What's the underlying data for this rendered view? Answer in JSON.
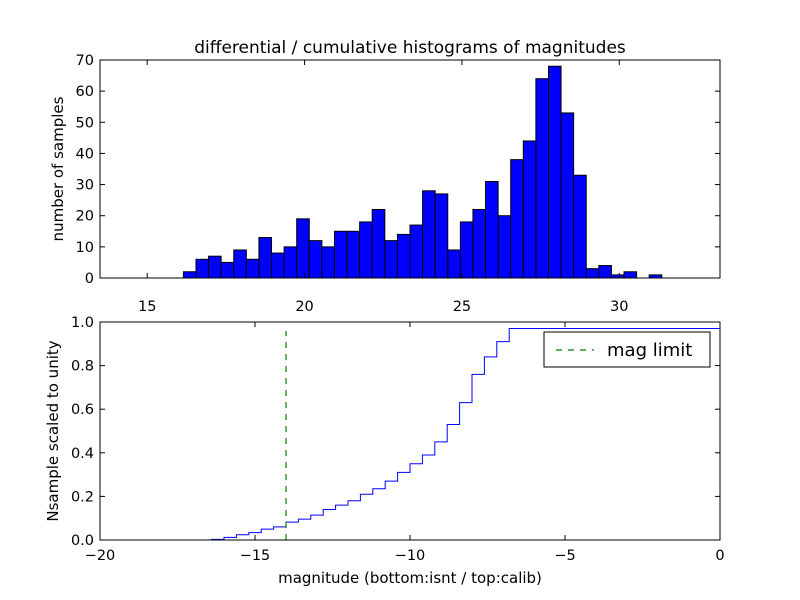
{
  "figure": {
    "title": "differential / cumulative histograms of magnitudes",
    "colors": {
      "bar": "#0000ff",
      "step": "#0000ff",
      "limit": "#008000",
      "edge": "#000000"
    }
  },
  "chart_data": [
    {
      "type": "bar",
      "title": "differential / cumulative histograms of magnitudes",
      "xlabel": "",
      "ylabel": "number of samples",
      "xlim": [
        13.5,
        33.2
      ],
      "ylim": [
        0,
        70
      ],
      "xticks": [
        15,
        20,
        25,
        30
      ],
      "yticks": [
        0,
        10,
        20,
        30,
        40,
        50,
        60,
        70
      ],
      "bin_start": 16.15,
      "bin_width": 0.4,
      "values": [
        2,
        6,
        7,
        5,
        9,
        6,
        13,
        8,
        10,
        19,
        12,
        10,
        15,
        15,
        18,
        22,
        12,
        14,
        17,
        28,
        27,
        9,
        18,
        22,
        31,
        20,
        38,
        44,
        64,
        68,
        53,
        33,
        3,
        4,
        1,
        2,
        0,
        1,
        0
      ]
    },
    {
      "type": "line",
      "title": "",
      "xlabel": "magnitude (bottom:isnt / top:calib)",
      "ylabel": "Nsample scaled to unity",
      "xlim": [
        -20,
        0
      ],
      "ylim": [
        0,
        1
      ],
      "xticks": [
        -20,
        -15,
        -10,
        -5,
        0
      ],
      "xtick_labels": [
        "−20",
        "−15",
        "−10",
        "−5",
        "0"
      ],
      "yticks": [
        0.0,
        0.2,
        0.4,
        0.6,
        0.8,
        1.0
      ],
      "ytick_labels": [
        "0.0",
        "0.2",
        "0.4",
        "0.6",
        "0.8",
        "1.0"
      ],
      "series": [
        {
          "name": "cumulative",
          "x": [
            -16.4,
            -16.0,
            -15.6,
            -15.2,
            -14.8,
            -14.4,
            -14.0,
            -13.6,
            -13.2,
            -12.8,
            -12.4,
            -12.0,
            -11.6,
            -11.2,
            -10.8,
            -10.4,
            -10.0,
            -9.6,
            -9.2,
            -8.8,
            -8.4,
            -8.0,
            -7.6,
            -7.2,
            -6.8,
            0
          ],
          "y": [
            0.003,
            0.012,
            0.024,
            0.034,
            0.05,
            0.06,
            0.082,
            0.096,
            0.114,
            0.14,
            0.16,
            0.18,
            0.21,
            0.235,
            0.27,
            0.31,
            0.35,
            0.39,
            0.45,
            0.53,
            0.63,
            0.76,
            0.84,
            0.91,
            0.97,
            1.0
          ]
        }
      ],
      "limit": {
        "name": "mag limit",
        "x": -14.0
      },
      "legend": {
        "entries": [
          "mag limit"
        ],
        "placement": "top-right"
      }
    }
  ]
}
